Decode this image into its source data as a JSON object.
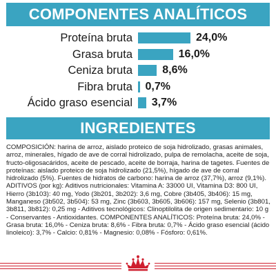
{
  "analytic": {
    "heading": "COMPONENTES ANALÍTICOS",
    "max_value": 24.0
  },
  "chart_data": {
    "type": "bar",
    "categories": [
      "Proteína bruta",
      "Grasa bruta",
      "Ceniza bruta",
      "Fibra bruta",
      "Ácido graso esencial"
    ],
    "values": [
      24.0,
      16.0,
      8.6,
      0.7,
      3.7
    ],
    "value_labels": [
      "24,0%",
      "16,0%",
      "8,6%",
      "0,7%",
      "3,7%"
    ],
    "bar_color": "#3aa4c1"
  },
  "ingredients": {
    "heading": "INGREDIENTES",
    "text": "COMPOSICIÓN: harina de arroz, aislado proteico de soja hidrolizado, grasas animales, arroz, minerales, hígado de ave de corral hidrolizado, pulpa de remolacha, aceite de soja, fructo-oligosacáridos, aceite de pescado, aceite de borraja, harina de tagetes. Fuentes de proteínas: aislado proteico de soja hidrolizado (21,5%), hígado de ave de corral hidrolizado (5%). Fuentes de hidratos de carbono: harina de arroz (37,7%), arroz (9,1%). ADITIVOS (por kg): Aditivos nutricionales: Vitamina A: 33000 UI, Vitamina D3: 800 UI, Hierro (3b103): 40 mg, Yodo (3b201, 3b202): 3,6 mg, Cobre (3b405, 3b406): 15 mg, Manganeso (3b502, 3b504): 53 mg, Zinc (3b603, 3b605, 3b606): 157 mg, Selenio (3b801, 3b811, 3b812): 0,25 mg - Aditivos tecnológicos: Clinoptilolita de origen sedimentario: 10 g - Conservantes - Antioxidantes. COMPONENTES ANALÍTICOS: Proteína bruta: 24,0% - Grasa bruta: 16,0% - Ceniza bruta: 8,6% - Fibra bruta: 0,7% - Ácido graso esencial (ácido linoleico): 3,7% - Calcio: 0,81% - Magnesio: 0,08% - Fósforo: 0,61%."
  },
  "footer": {
    "line_color": "#cf1f2f",
    "logo_icon": "royal-canin-crown-icon"
  }
}
